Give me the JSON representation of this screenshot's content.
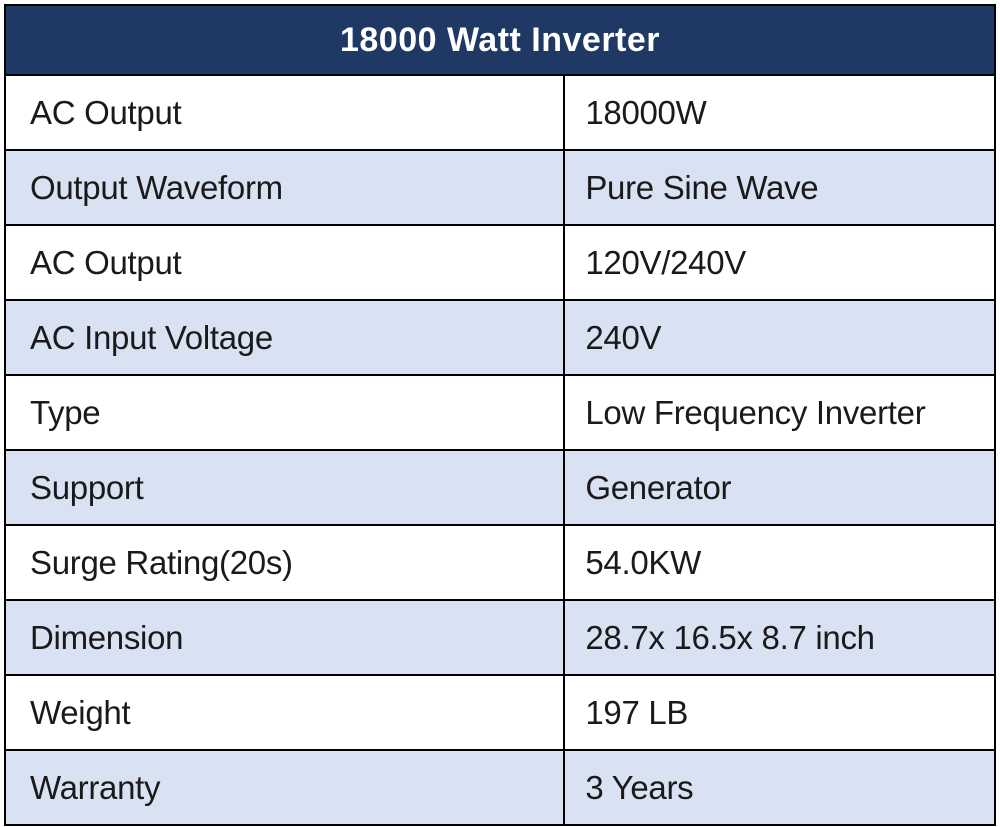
{
  "table": {
    "title": "18000 Watt Inverter",
    "rows": [
      {
        "label": "AC Output",
        "value": "18000W"
      },
      {
        "label": "Output Waveform",
        "value": "Pure Sine Wave"
      },
      {
        "label": "AC Output",
        "value": "120V/240V"
      },
      {
        "label": "AC Input Voltage",
        "value": "240V"
      },
      {
        "label": "Type",
        "value": "Low Frequency Inverter"
      },
      {
        "label": "Support",
        "value": "Generator"
      },
      {
        "label": "Surge Rating(20s)",
        "value": "54.0KW"
      },
      {
        "label": "Dimension",
        "value": "28.7x 16.5x 8.7 inch"
      },
      {
        "label": "Weight",
        "value": "197 LB"
      },
      {
        "label": "Warranty",
        "value": "3 Years"
      }
    ],
    "colors": {
      "header_bg": "#1F3864",
      "header_text": "#FFFFFF",
      "row_bg": "#FFFFFF",
      "row_alt_bg": "#D9E2F3",
      "border": "#000000",
      "cell_text": "#1A1A1A"
    }
  }
}
